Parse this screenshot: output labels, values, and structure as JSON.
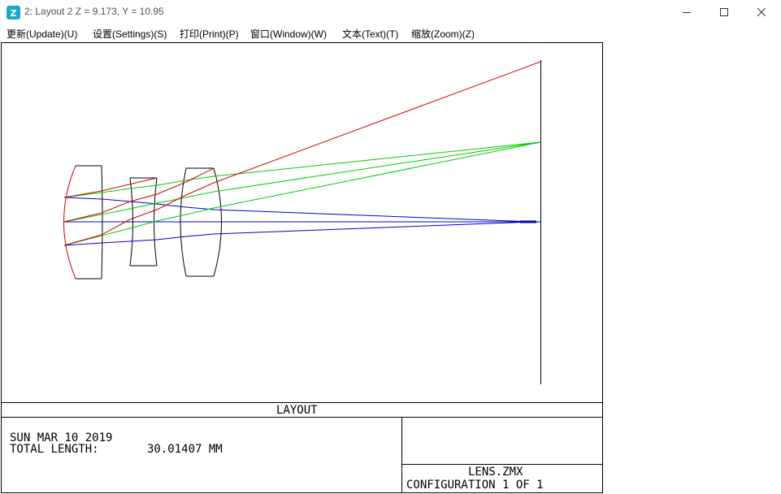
{
  "window": {
    "title": "2: Layout 2 Z = 9.173, Y = 10.95",
    "app_icon": "zemax-app-icon",
    "controls": [
      "minimize-icon",
      "maximize-icon",
      "close-icon"
    ]
  },
  "menu": [
    {
      "label": "更新(Update)(U)"
    },
    {
      "label": "设置(Settings)(S)"
    },
    {
      "label": "打印(Print)(P)"
    },
    {
      "label": "窗口(Window)(W)"
    },
    {
      "label": "文本(Text)(T)"
    },
    {
      "label": "缩放(Zoom)(Z)"
    }
  ],
  "plot": {
    "title": "LAYOUT",
    "date": "SUN MAR 10 2019",
    "total_length_label": "TOTAL LENGTH:",
    "total_length_value": "30.01407 MM",
    "file_name": "LENS.ZMX",
    "configuration": "CONFIGURATION 1 OF 1",
    "ray_colors": {
      "field1": "#0000cc",
      "field2": "#00cc00",
      "field3": "#cc0000"
    },
    "lens_outline_color": "#000000"
  }
}
